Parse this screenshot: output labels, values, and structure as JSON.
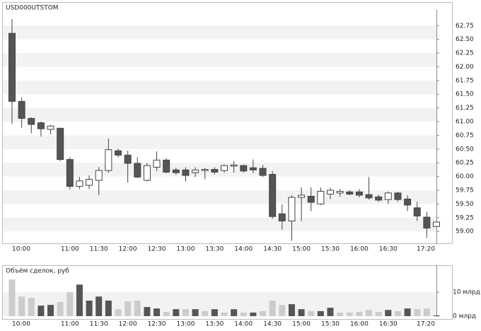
{
  "chart_data": [
    {
      "type": "candlestick",
      "title": "USD000UTSTOM",
      "categories": [
        "10:00",
        null,
        null,
        null,
        null,
        null,
        "11:00",
        null,
        null,
        "11:30",
        null,
        null,
        "12:00",
        null,
        null,
        "12:30",
        null,
        null,
        "13:00",
        null,
        null,
        "13:30",
        null,
        null,
        "14:00",
        null,
        null,
        "14:30",
        null,
        null,
        "15:00",
        null,
        null,
        "15:30",
        null,
        null,
        "16:00",
        null,
        null,
        "16:30",
        null,
        null,
        null,
        null,
        "17:20"
      ],
      "open": [
        62.61,
        61.37,
        61.06,
        60.98,
        60.86,
        60.88,
        60.31,
        59.82,
        59.84,
        59.93,
        60.11,
        60.47,
        60.39,
        60.24,
        59.93,
        60.17,
        60.3,
        60.12,
        60.12,
        60.07,
        60.11,
        60.13,
        60.11,
        60.19,
        60.2,
        60.16,
        60.15,
        60.04,
        59.32,
        59.19,
        59.62,
        59.64,
        59.5,
        59.68,
        59.7,
        59.72,
        59.72,
        59.67,
        59.63,
        59.58,
        59.7,
        59.59,
        59.43,
        59.26,
        59.09
      ],
      "high": [
        62.87,
        61.44,
        61.08,
        61.0,
        60.94,
        60.89,
        60.35,
        59.99,
        60.02,
        60.17,
        60.69,
        60.51,
        60.47,
        60.35,
        60.25,
        60.46,
        60.33,
        60.16,
        60.17,
        60.17,
        60.15,
        60.17,
        60.22,
        60.28,
        60.22,
        60.31,
        60.21,
        60.1,
        59.49,
        59.66,
        59.8,
        59.8,
        59.8,
        59.8,
        59.77,
        59.75,
        59.77,
        59.99,
        59.67,
        59.73,
        59.72,
        59.66,
        59.54,
        59.36,
        59.18
      ],
      "low": [
        60.96,
        60.89,
        60.79,
        60.73,
        60.77,
        60.28,
        59.76,
        59.77,
        59.77,
        59.66,
        60.07,
        60.35,
        59.89,
        59.97,
        59.91,
        60.1,
        60.06,
        60.03,
        59.91,
        59.99,
        59.95,
        60.04,
        60.07,
        60.07,
        60.07,
        60.06,
        59.99,
        59.23,
        59.03,
        58.83,
        59.19,
        59.37,
        59.48,
        59.59,
        59.63,
        59.66,
        59.62,
        59.58,
        59.54,
        59.5,
        59.54,
        59.37,
        59.19,
        58.88,
        59.08
      ],
      "close": [
        61.37,
        61.06,
        60.95,
        60.87,
        60.92,
        60.31,
        59.82,
        59.92,
        59.95,
        60.11,
        60.49,
        60.39,
        60.24,
        59.99,
        60.2,
        60.3,
        60.08,
        60.07,
        60.02,
        60.12,
        60.13,
        60.08,
        60.2,
        60.21,
        60.1,
        60.12,
        60.02,
        59.27,
        59.19,
        59.62,
        59.66,
        59.53,
        59.73,
        59.75,
        59.73,
        59.68,
        59.66,
        59.61,
        59.57,
        59.7,
        59.58,
        59.48,
        59.28,
        59.06,
        59.17
      ],
      "up_color": "#ffffff",
      "down_color": "#555555",
      "ylim": [
        58.77,
        62.96
      ],
      "yticks": [
        {
          "value": 59,
          "label": "59.00"
        },
        59.25,
        {
          "value": 59.5,
          "label": "59.50"
        },
        59.75,
        {
          "value": 60,
          "label": "60.00"
        },
        60.25,
        {
          "value": 60.5,
          "label": "60.50"
        },
        60.75,
        {
          "value": 61,
          "label": "61.00"
        },
        61.25,
        {
          "value": 61.5,
          "label": "61.50"
        },
        61.75,
        {
          "value": 62,
          "label": "62.00"
        },
        62.25,
        {
          "value": 62.5,
          "label": "62.50"
        },
        62.75
      ],
      "grid": true
    },
    {
      "type": "bar",
      "title": "Объём сделок, руб",
      "categories": [
        "10:00",
        null,
        null,
        null,
        null,
        null,
        "11:00",
        null,
        null,
        "11:30",
        null,
        null,
        "12:00",
        null,
        null,
        "12:30",
        null,
        null,
        "13:00",
        null,
        null,
        "13:30",
        null,
        null,
        "14:00",
        null,
        null,
        "14:30",
        null,
        null,
        "15:00",
        null,
        null,
        "15:30",
        null,
        null,
        "16:00",
        null,
        null,
        "16:30",
        null,
        null,
        null,
        null,
        "17:20"
      ],
      "values": [
        15.3,
        8.2,
        7.6,
        4.4,
        4.7,
        5.9,
        10.0,
        13.2,
        6.5,
        8.2,
        6.5,
        2.9,
        6.2,
        6.5,
        3.8,
        3.2,
        1.8,
        2.9,
        2.9,
        2.9,
        2.1,
        2.9,
        1.5,
        2.9,
        1.5,
        1.5,
        2.1,
        6.5,
        4.7,
        5.0,
        2.9,
        2.1,
        2.1,
        3.5,
        1.5,
        1.5,
        1.8,
        2.6,
        1.8,
        2.6,
        2.1,
        3.2,
        2.9,
        3.2,
        0.3
      ],
      "colors": [
        "#cccccc",
        "#cccccc",
        "#cccccc",
        "#555555",
        "#555555",
        "#cccccc",
        "#cccccc",
        "#555555",
        "#555555",
        "#555555",
        "#555555",
        "#cccccc",
        "#cccccc",
        "#cccccc",
        "#555555",
        "#555555",
        "#cccccc",
        "#555555",
        "#cccccc",
        "#555555",
        "#cccccc",
        "#555555",
        "#cccccc",
        "#555555",
        "#cccccc",
        "#555555",
        "#cccccc",
        "#cccccc",
        "#cccccc",
        "#555555",
        "#555555",
        "#cccccc",
        "#555555",
        "#555555",
        "#cccccc",
        "#cccccc",
        "#cccccc",
        "#cccccc",
        "#cccccc",
        "#555555",
        "#cccccc",
        "#555555",
        "#cccccc",
        "#cccccc",
        "#555555"
      ],
      "ylim": [
        0,
        19.5
      ],
      "yticks": [
        {
          "value": 0,
          "label": "0 млрд"
        },
        {
          "value": 10,
          "label": "10 млрд"
        }
      ],
      "grid": true
    }
  ]
}
